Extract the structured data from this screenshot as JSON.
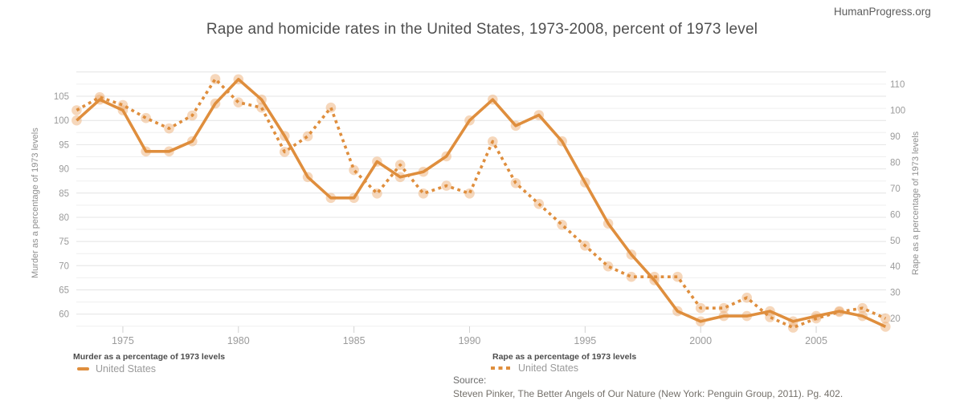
{
  "page": {
    "watermark": "HumanProgress.org"
  },
  "chart_data": {
    "type": "line",
    "title": "Rape and homicide rates in the United States, 1973-2008, percent of 1973 level",
    "grid": true,
    "legend_position": "bottom",
    "years": [
      1973,
      1974,
      1975,
      1976,
      1977,
      1978,
      1979,
      1980,
      1981,
      1982,
      1983,
      1984,
      1985,
      1986,
      1987,
      1988,
      1989,
      1990,
      1991,
      1992,
      1993,
      1994,
      1995,
      1996,
      1997,
      1998,
      1999,
      2000,
      2001,
      2002,
      2003,
      2004,
      2005,
      2006,
      2007,
      2008
    ],
    "x_axis": {
      "tick_years": [
        1975,
        1980,
        1985,
        1990,
        1995,
        2000,
        2005
      ],
      "range": [
        1973,
        2008
      ]
    },
    "left_axis": {
      "label": "Murder as a percentage of 1973 levels",
      "ticks": [
        105,
        100,
        95,
        90,
        85,
        80,
        75,
        70,
        65,
        60
      ],
      "range": [
        57.5,
        110
      ],
      "grid_step": 2.5
    },
    "right_axis": {
      "label": "Rape as a percentage of 1973 levels",
      "ticks": [
        110,
        100,
        90,
        80,
        70,
        60,
        50,
        40,
        30,
        20
      ],
      "range": [
        16,
        112
      ]
    },
    "series": [
      {
        "name": "United States",
        "legend_group": "Murder as a percentage of 1973 levels",
        "axis": "left",
        "line_style": "solid",
        "color": "#df8e3d",
        "marker_color": "#eeb078",
        "values": [
          100,
          104.3,
          102.1,
          93.6,
          93.6,
          95.7,
          103.5,
          108.5,
          104.3,
          96.8,
          88.3,
          84,
          84,
          91.5,
          88.3,
          89.4,
          92.6,
          100,
          104.3,
          98.9,
          101.1,
          95.7,
          87.2,
          78.7,
          72.3,
          67,
          60.6,
          58.5,
          59.6,
          59.6,
          60.6,
          58.5,
          59.6,
          60.6,
          59.6,
          57.4
        ]
      },
      {
        "name": "United States",
        "legend_group": "Rape as a percentage of 1973 levels",
        "axis": "right",
        "line_style": "dotted",
        "color": "#df8e3d",
        "marker_color": "#eeb078",
        "values": [
          100,
          105,
          102,
          97,
          93,
          98,
          112,
          103,
          101,
          84,
          90,
          101,
          77,
          68,
          79,
          68,
          71,
          68,
          88,
          72,
          64,
          56,
          48,
          40,
          36,
          36,
          36,
          24,
          24,
          28,
          20.5,
          16.5,
          20,
          22.5,
          24,
          20
        ]
      }
    ]
  },
  "source": {
    "label": "Source:",
    "text": "Steven Pinker, The Better Angels of Our Nature (New York: Penguin Group, 2011). Pg. 402."
  },
  "colors": {
    "accent": "#df8e3d",
    "marker_halo": "#eeb078",
    "grid_major": "#e4e4e4",
    "grid_minor": "#efefef",
    "title_text": "#4f4f4f",
    "axis_text": "#9b9b9b",
    "legend_title_text": "#4c4c4c",
    "source_text": "#74706a"
  }
}
